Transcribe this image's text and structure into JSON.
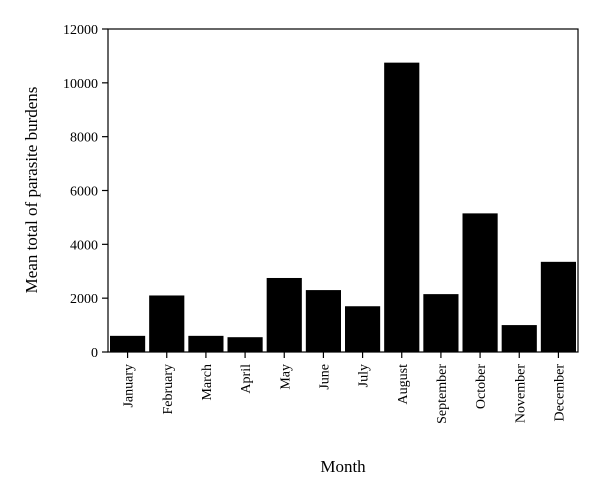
{
  "chart_data": {
    "type": "bar",
    "title": "",
    "xlabel": "Month",
    "ylabel": "Mean total of parasite burdens",
    "categories": [
      "January",
      "February",
      "March",
      "April",
      "May",
      "June",
      "July",
      "August",
      "September",
      "October",
      "November",
      "December"
    ],
    "values": [
      600,
      2100,
      600,
      550,
      2750,
      2300,
      1700,
      10750,
      2150,
      5150,
      1000,
      3350
    ],
    "ylim": [
      0,
      12000
    ],
    "yticks": [
      0,
      2000,
      4000,
      6000,
      8000,
      10000,
      12000
    ],
    "grid": false,
    "legend": "none",
    "bar_color": "#000000"
  }
}
